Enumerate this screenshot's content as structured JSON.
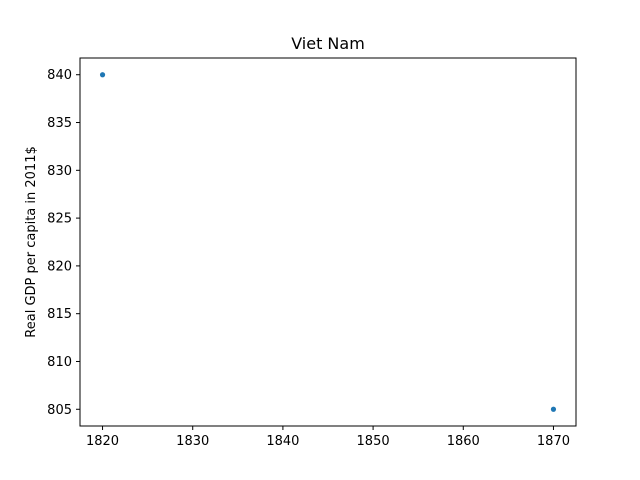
{
  "chart_data": {
    "type": "scatter",
    "title": "Viet Nam",
    "xlabel": "",
    "ylabel": "Real GDP per capita in 2011$",
    "x": [
      1820,
      1870
    ],
    "y": [
      840,
      805
    ],
    "xlim": [
      1817.5,
      1872.5
    ],
    "ylim": [
      803.25,
      841.75
    ],
    "xticks": [
      1820,
      1830,
      1840,
      1850,
      1860,
      1870
    ],
    "yticks": [
      805,
      810,
      815,
      820,
      825,
      830,
      835,
      840
    ],
    "grid": false,
    "marker_color": "#1f77b4"
  }
}
